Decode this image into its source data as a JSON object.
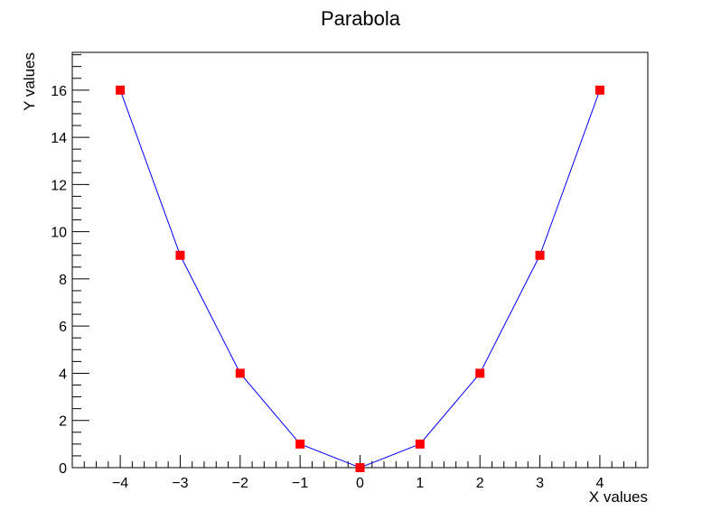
{
  "chart_data": {
    "type": "line",
    "title": "Parabola",
    "xlabel": "X values",
    "ylabel": "Y values",
    "xlim": [
      -4.8,
      4.8
    ],
    "ylim": [
      0,
      17.6
    ],
    "x_ticks": [
      -4,
      -3,
      -2,
      -1,
      0,
      1,
      2,
      3,
      4
    ],
    "y_ticks": [
      0,
      2,
      4,
      6,
      8,
      10,
      12,
      14,
      16
    ],
    "grid": false,
    "series": [
      {
        "x": [
          -4,
          -3,
          -2,
          -1,
          0,
          1,
          2,
          3,
          4
        ],
        "y": [
          16,
          9,
          4,
          1,
          0,
          1,
          4,
          9,
          16
        ],
        "line_color": "#0000ff",
        "marker": "square",
        "marker_color": "#ff0000"
      }
    ]
  }
}
